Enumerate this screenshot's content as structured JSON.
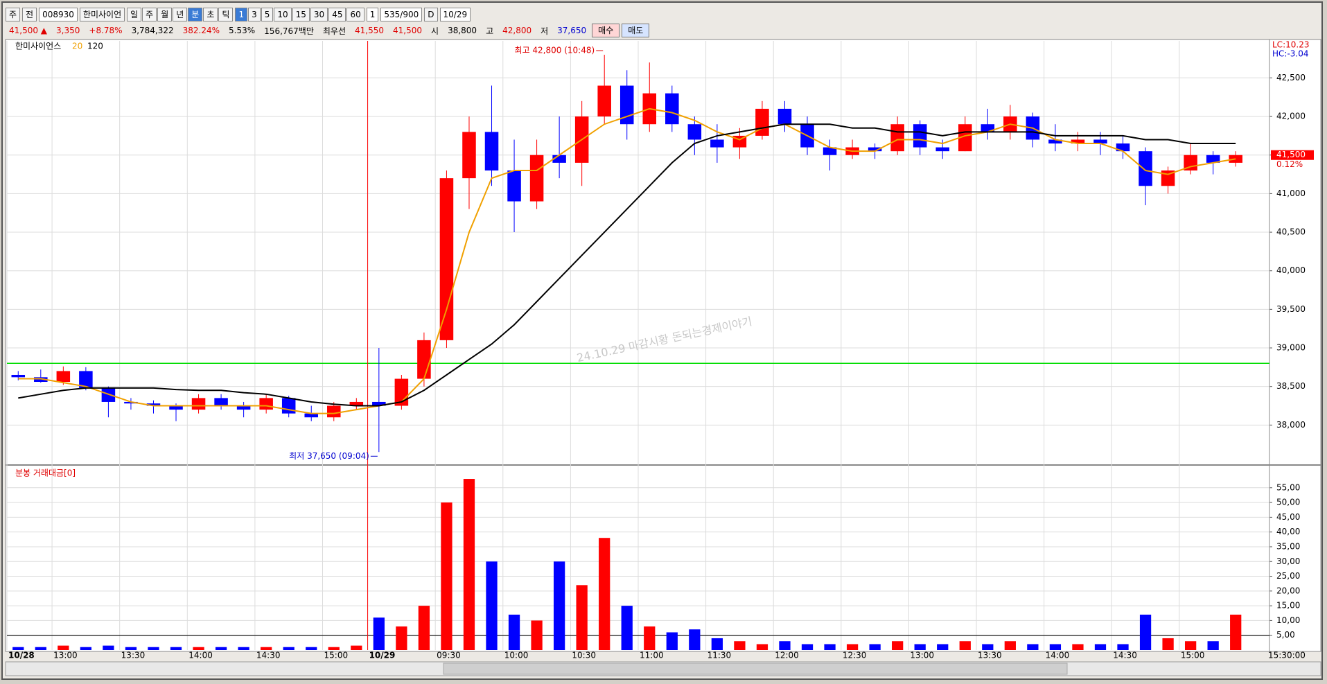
{
  "toolbar": {
    "type_select": "주",
    "scope": "전",
    "code": "008930",
    "name": "한미사이언",
    "periods": [
      "일",
      "주",
      "월",
      "년",
      "분",
      "초",
      "틱"
    ],
    "intervals": [
      "1",
      "3",
      "5",
      "10",
      "15",
      "30",
      "45",
      "60"
    ],
    "count": "1",
    "range": "535/900",
    "date_check": "D",
    "date": "10/29"
  },
  "quote": {
    "price": "41,500 ▲",
    "change": "3,350",
    "change_rate": "+8.78%",
    "volume": "3,784,322",
    "volume_rate": "382.24%",
    "turnover_rate": "5.53%",
    "amount": "156,767백만",
    "best_label": "최우선",
    "ask": "41,550",
    "bid": "41,500",
    "open_label": "시",
    "open": "38,800",
    "high_label": "고",
    "high": "42,800",
    "low_label": "저",
    "low": "37,650",
    "buy": "매수",
    "sell": "매도"
  },
  "time_axis": {
    "end_label": "15:30:00"
  },
  "chart_data": [
    {
      "type": "candlestick",
      "title": "한미사이언스",
      "categories": [
        "10/28",
        null,
        "13:00",
        null,
        null,
        "13:30",
        null,
        null,
        "14:00",
        null,
        null,
        "14:30",
        null,
        null,
        "15:00",
        null,
        "10/29",
        null,
        null,
        "09:30",
        null,
        null,
        "10:00",
        null,
        null,
        "10:30",
        null,
        null,
        "11:00",
        null,
        null,
        "11:30",
        null,
        null,
        "12:00",
        null,
        null,
        "12:30",
        null,
        null,
        "13:00",
        null,
        null,
        "13:30",
        null,
        null,
        "14:00",
        null,
        null,
        "14:30",
        null,
        null,
        "15:00",
        null,
        null
      ],
      "open": [
        38650,
        38620,
        38560,
        38700,
        38480,
        38300,
        38280,
        38250,
        38200,
        38350,
        38250,
        38200,
        38350,
        38150,
        38100,
        38250,
        38300,
        38250,
        38600,
        39100,
        41200,
        41800,
        41300,
        40900,
        41500,
        41400,
        42000,
        42400,
        41900,
        42300,
        41900,
        41700,
        41600,
        41750,
        42100,
        41900,
        41600,
        41500,
        41600,
        41550,
        41900,
        41600,
        41550,
        41900,
        41800,
        42000,
        41700,
        41650,
        41700,
        41650,
        41550,
        41100,
        41300,
        41500,
        41400
      ],
      "high": [
        38700,
        38720,
        38760,
        38750,
        38500,
        38350,
        38320,
        38280,
        38400,
        38400,
        38300,
        38400,
        38380,
        38250,
        38300,
        38350,
        39000,
        38650,
        39200,
        41300,
        42000,
        42400,
        41700,
        41700,
        42000,
        42200,
        42800,
        42600,
        42700,
        42400,
        42000,
        41900,
        41850,
        42200,
        42200,
        42000,
        41700,
        41700,
        41650,
        42000,
        41950,
        41700,
        42000,
        42100,
        42150,
        42050,
        41900,
        41800,
        41800,
        41750,
        41600,
        41350,
        41650,
        41550,
        41550
      ],
      "low": [
        38580,
        38550,
        38520,
        38450,
        38100,
        38200,
        38150,
        38050,
        38150,
        38200,
        38100,
        38150,
        38100,
        38050,
        38050,
        38200,
        37650,
        38200,
        38500,
        39000,
        40800,
        41100,
        40500,
        40800,
        41200,
        41100,
        41900,
        41700,
        41800,
        41800,
        41500,
        41400,
        41450,
        41700,
        41800,
        41500,
        41300,
        41450,
        41450,
        41500,
        41500,
        41450,
        41550,
        41700,
        41700,
        41600,
        41550,
        41550,
        41500,
        41450,
        40850,
        41000,
        41250,
        41250,
        41350
      ],
      "close": [
        38620,
        38560,
        38700,
        38480,
        38300,
        38280,
        38250,
        38200,
        38350,
        38250,
        38200,
        38350,
        38150,
        38100,
        38250,
        38300,
        38250,
        38600,
        39100,
        41200,
        41800,
        41300,
        40900,
        41500,
        41400,
        42000,
        42400,
        41900,
        42300,
        41900,
        41700,
        41600,
        41750,
        42100,
        41900,
        41600,
        41500,
        41600,
        41550,
        41900,
        41600,
        41550,
        41900,
        41800,
        42000,
        41700,
        41650,
        41700,
        41650,
        41550,
        41100,
        41300,
        41500,
        41400,
        41500
      ],
      "up_color": "#ff0000",
      "down_color": "#0000ff",
      "series": [
        {
          "name": "20",
          "color": "#f0a000",
          "values": [
            38600,
            38600,
            38550,
            38500,
            38400,
            38300,
            38250,
            38250,
            38250,
            38250,
            38250,
            38250,
            38200,
            38150,
            38150,
            38200,
            38250,
            38300,
            38600,
            39500,
            40500,
            41200,
            41300,
            41300,
            41500,
            41700,
            41900,
            42000,
            42100,
            42050,
            41950,
            41800,
            41700,
            41850,
            41900,
            41750,
            41600,
            41550,
            41550,
            41700,
            41700,
            41650,
            41750,
            41800,
            41900,
            41850,
            41700,
            41650,
            41650,
            41550,
            41300,
            41250,
            41350,
            41400,
            41450
          ]
        },
        {
          "name": "120",
          "color": "#000000",
          "values": [
            38350,
            38400,
            38450,
            38480,
            38480,
            38480,
            38480,
            38460,
            38450,
            38450,
            38420,
            38400,
            38350,
            38300,
            38270,
            38250,
            38250,
            38300,
            38450,
            38650,
            38850,
            39050,
            39300,
            39600,
            39900,
            40200,
            40500,
            40800,
            41100,
            41400,
            41650,
            41750,
            41800,
            41850,
            41900,
            41900,
            41900,
            41850,
            41850,
            41800,
            41800,
            41750,
            41800,
            41800,
            41800,
            41800,
            41750,
            41750,
            41750,
            41750,
            41700,
            41700,
            41650,
            41650,
            41650
          ]
        }
      ],
      "hline": 38800,
      "hline_color": "#00dd00",
      "high_label": "최고 42,800 (10:48)",
      "low_label": "최저 37,650 (09:04)",
      "lc_label": "LC:10.23",
      "hc_label": "HC:-3.04",
      "last_label": "41,500",
      "change_label": "0.12%",
      "watermark": "24.10.29 마감시황 돈되는경제이야기",
      "ylim": [
        37500,
        42980
      ],
      "yticks": [
        {
          "value": 38000,
          "label": "38,000"
        },
        {
          "value": 38500,
          "label": "38,500"
        },
        {
          "value": 39000,
          "label": "39,000"
        },
        {
          "value": 39500,
          "label": "39,500"
        },
        {
          "value": 40000,
          "label": "40,000"
        },
        {
          "value": 40500,
          "label": "40,500"
        },
        {
          "value": 41000,
          "label": "41,000"
        },
        {
          "value": 41500,
          "label": "41,500"
        },
        {
          "value": 42000,
          "label": "42,000"
        },
        {
          "value": 42500,
          "label": "42,500"
        }
      ],
      "grid": true
    },
    {
      "type": "bar",
      "title": "분봉 거래대금[0]",
      "values": [
        1,
        1,
        1.5,
        1,
        1.5,
        1,
        1,
        1,
        1,
        1,
        1,
        1,
        1,
        1,
        1,
        1.5,
        11,
        8,
        15,
        50,
        58,
        30,
        12,
        10,
        30,
        22,
        38,
        15,
        8,
        6,
        7,
        4,
        3,
        2,
        3,
        2,
        2,
        2,
        2,
        3,
        2,
        2,
        3,
        2,
        3,
        2,
        2,
        2,
        2,
        2,
        12,
        4,
        3,
        3,
        12
      ],
      "hline": 5,
      "ylim": [
        0,
        62
      ],
      "yticks": [
        {
          "value": 5,
          "label": "5,00"
        },
        {
          "value": 10,
          "label": "10,00"
        },
        {
          "value": 15,
          "label": "15,00"
        },
        {
          "value": 20,
          "label": "20,00"
        },
        {
          "value": 25,
          "label": "25,00"
        },
        {
          "value": 30,
          "label": "30,00"
        },
        {
          "value": 35,
          "label": "35,00"
        },
        {
          "value": 40,
          "label": "40,00"
        },
        {
          "value": 45,
          "label": "45,00"
        },
        {
          "value": 50,
          "label": "50,00"
        },
        {
          "value": 55,
          "label": "55,00"
        }
      ],
      "grid": true
    }
  ]
}
